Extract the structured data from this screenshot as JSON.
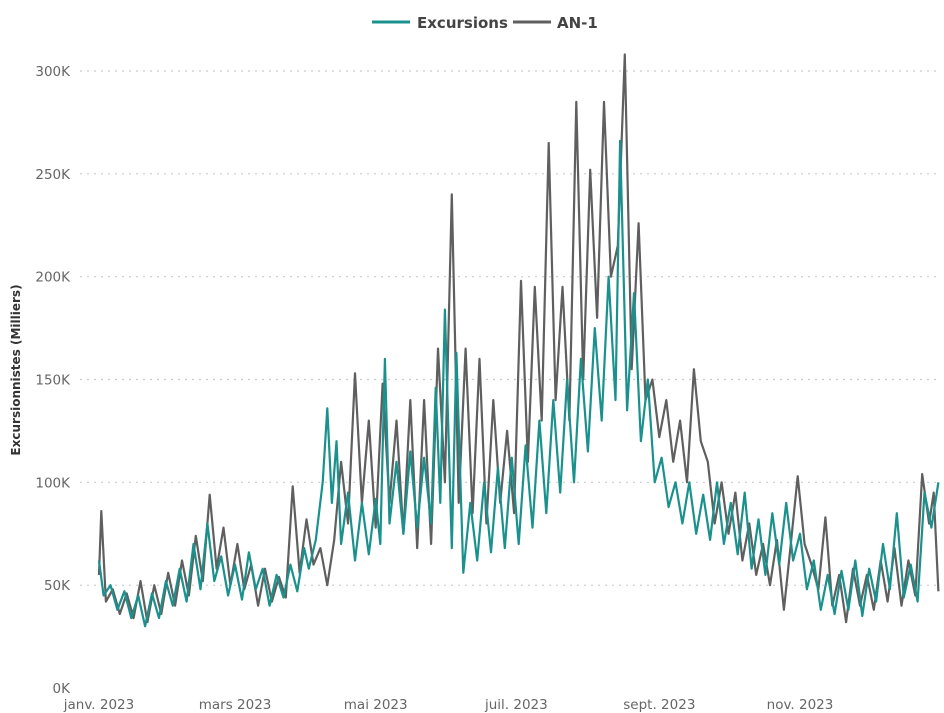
{
  "chart_data": {
    "type": "line",
    "title": "",
    "xlabel": "",
    "ylabel": "Excursionnistes (Milliers)",
    "legend_position": "top-center",
    "grid": true,
    "ylim": [
      0,
      300000
    ],
    "yticks": [
      {
        "value": 0,
        "label": "0K"
      },
      {
        "value": 50000,
        "label": "50K"
      },
      {
        "value": 100000,
        "label": "100K"
      },
      {
        "value": 150000,
        "label": "150K"
      },
      {
        "value": 200000,
        "label": "200K"
      },
      {
        "value": 250000,
        "label": "250K"
      },
      {
        "value": 300000,
        "label": "300K"
      }
    ],
    "xlim": [
      "2023-01-01",
      "2023-12-31"
    ],
    "xticks": [
      {
        "date": "2023-01-01",
        "label": "janv. 2023"
      },
      {
        "date": "2023-03-01",
        "label": "mars 2023"
      },
      {
        "date": "2023-05-01",
        "label": "mai 2023"
      },
      {
        "date": "2023-07-01",
        "label": "juil. 2023"
      },
      {
        "date": "2023-09-01",
        "label": "sept. 2023"
      },
      {
        "date": "2023-11-01",
        "label": "nov. 2023"
      }
    ],
    "series": [
      {
        "name": "Excursions",
        "color": "#1a918d",
        "points": [
          [
            "2023-01-01",
            62000
          ],
          [
            "2023-01-03",
            45000
          ],
          [
            "2023-01-06",
            50000
          ],
          [
            "2023-01-09",
            38000
          ],
          [
            "2023-01-12",
            47000
          ],
          [
            "2023-01-15",
            34000
          ],
          [
            "2023-01-18",
            45000
          ],
          [
            "2023-01-21",
            30000
          ],
          [
            "2023-01-24",
            46000
          ],
          [
            "2023-01-27",
            34000
          ],
          [
            "2023-01-30",
            52000
          ],
          [
            "2023-02-02",
            40000
          ],
          [
            "2023-02-05",
            58000
          ],
          [
            "2023-02-08",
            42000
          ],
          [
            "2023-02-11",
            70000
          ],
          [
            "2023-02-14",
            48000
          ],
          [
            "2023-02-17",
            80000
          ],
          [
            "2023-02-20",
            52000
          ],
          [
            "2023-02-23",
            64000
          ],
          [
            "2023-02-26",
            45000
          ],
          [
            "2023-03-01",
            60000
          ],
          [
            "2023-03-04",
            43000
          ],
          [
            "2023-03-07",
            66000
          ],
          [
            "2023-03-10",
            48000
          ],
          [
            "2023-03-13",
            58000
          ],
          [
            "2023-03-16",
            40000
          ],
          [
            "2023-03-19",
            55000
          ],
          [
            "2023-03-22",
            44000
          ],
          [
            "2023-03-25",
            60000
          ],
          [
            "2023-03-28",
            47000
          ],
          [
            "2023-03-31",
            68000
          ],
          [
            "2023-04-02",
            58000
          ],
          [
            "2023-04-05",
            72000
          ],
          [
            "2023-04-08",
            100000
          ],
          [
            "2023-04-10",
            136000
          ],
          [
            "2023-04-12",
            90000
          ],
          [
            "2023-04-14",
            120000
          ],
          [
            "2023-04-16",
            70000
          ],
          [
            "2023-04-19",
            95000
          ],
          [
            "2023-04-22",
            62000
          ],
          [
            "2023-04-25",
            90000
          ],
          [
            "2023-04-28",
            65000
          ],
          [
            "2023-05-01",
            92000
          ],
          [
            "2023-05-03",
            70000
          ],
          [
            "2023-05-05",
            160000
          ],
          [
            "2023-05-07",
            80000
          ],
          [
            "2023-05-10",
            110000
          ],
          [
            "2023-05-13",
            75000
          ],
          [
            "2023-05-16",
            115000
          ],
          [
            "2023-05-19",
            78000
          ],
          [
            "2023-05-22",
            112000
          ],
          [
            "2023-05-25",
            80000
          ],
          [
            "2023-05-27",
            146000
          ],
          [
            "2023-05-29",
            90000
          ],
          [
            "2023-05-31",
            184000
          ],
          [
            "2023-06-03",
            68000
          ],
          [
            "2023-06-05",
            163000
          ],
          [
            "2023-06-08",
            56000
          ],
          [
            "2023-06-11",
            90000
          ],
          [
            "2023-06-14",
            62000
          ],
          [
            "2023-06-17",
            100000
          ],
          [
            "2023-06-20",
            66000
          ],
          [
            "2023-06-23",
            107000
          ],
          [
            "2023-06-26",
            68000
          ],
          [
            "2023-06-29",
            112000
          ],
          [
            "2023-07-02",
            70000
          ],
          [
            "2023-07-05",
            118000
          ],
          [
            "2023-07-08",
            78000
          ],
          [
            "2023-07-11",
            130000
          ],
          [
            "2023-07-14",
            85000
          ],
          [
            "2023-07-17",
            140000
          ],
          [
            "2023-07-20",
            95000
          ],
          [
            "2023-07-23",
            150000
          ],
          [
            "2023-07-26",
            100000
          ],
          [
            "2023-07-29",
            160000
          ],
          [
            "2023-08-01",
            115000
          ],
          [
            "2023-08-04",
            175000
          ],
          [
            "2023-08-07",
            130000
          ],
          [
            "2023-08-10",
            200000
          ],
          [
            "2023-08-13",
            140000
          ],
          [
            "2023-08-15",
            266000
          ],
          [
            "2023-08-18",
            135000
          ],
          [
            "2023-08-21",
            192000
          ],
          [
            "2023-08-24",
            120000
          ],
          [
            "2023-08-27",
            150000
          ],
          [
            "2023-08-30",
            100000
          ],
          [
            "2023-09-02",
            112000
          ],
          [
            "2023-09-05",
            88000
          ],
          [
            "2023-09-08",
            100000
          ],
          [
            "2023-09-11",
            80000
          ],
          [
            "2023-09-14",
            100000
          ],
          [
            "2023-09-17",
            75000
          ],
          [
            "2023-09-20",
            94000
          ],
          [
            "2023-09-23",
            72000
          ],
          [
            "2023-09-26",
            100000
          ],
          [
            "2023-09-29",
            70000
          ],
          [
            "2023-10-02",
            90000
          ],
          [
            "2023-10-05",
            65000
          ],
          [
            "2023-10-08",
            95000
          ],
          [
            "2023-10-11",
            58000
          ],
          [
            "2023-10-14",
            82000
          ],
          [
            "2023-10-17",
            55000
          ],
          [
            "2023-10-20",
            85000
          ],
          [
            "2023-10-23",
            60000
          ],
          [
            "2023-10-26",
            90000
          ],
          [
            "2023-10-29",
            62000
          ],
          [
            "2023-11-01",
            75000
          ],
          [
            "2023-11-04",
            48000
          ],
          [
            "2023-11-07",
            62000
          ],
          [
            "2023-11-10",
            38000
          ],
          [
            "2023-11-13",
            55000
          ],
          [
            "2023-11-16",
            36000
          ],
          [
            "2023-11-19",
            57000
          ],
          [
            "2023-11-22",
            38000
          ],
          [
            "2023-11-25",
            62000
          ],
          [
            "2023-11-28",
            35000
          ],
          [
            "2023-12-01",
            58000
          ],
          [
            "2023-12-04",
            42000
          ],
          [
            "2023-12-07",
            70000
          ],
          [
            "2023-12-10",
            48000
          ],
          [
            "2023-12-13",
            85000
          ],
          [
            "2023-12-16",
            44000
          ],
          [
            "2023-12-19",
            60000
          ],
          [
            "2023-12-22",
            42000
          ],
          [
            "2023-12-25",
            95000
          ],
          [
            "2023-12-28",
            78000
          ],
          [
            "2023-12-31",
            100000
          ]
        ]
      },
      {
        "name": "AN-1",
        "color": "#5f5f5f",
        "points": [
          [
            "2023-01-01",
            55000
          ],
          [
            "2023-01-02",
            86000
          ],
          [
            "2023-01-04",
            42000
          ],
          [
            "2023-01-07",
            48000
          ],
          [
            "2023-01-10",
            36000
          ],
          [
            "2023-01-13",
            46000
          ],
          [
            "2023-01-16",
            34000
          ],
          [
            "2023-01-19",
            52000
          ],
          [
            "2023-01-22",
            32000
          ],
          [
            "2023-01-25",
            50000
          ],
          [
            "2023-01-28",
            36000
          ],
          [
            "2023-01-31",
            56000
          ],
          [
            "2023-02-03",
            40000
          ],
          [
            "2023-02-06",
            62000
          ],
          [
            "2023-02-09",
            45000
          ],
          [
            "2023-02-12",
            74000
          ],
          [
            "2023-02-15",
            52000
          ],
          [
            "2023-02-18",
            94000
          ],
          [
            "2023-02-21",
            58000
          ],
          [
            "2023-02-24",
            78000
          ],
          [
            "2023-02-27",
            50000
          ],
          [
            "2023-03-02",
            70000
          ],
          [
            "2023-03-05",
            48000
          ],
          [
            "2023-03-08",
            60000
          ],
          [
            "2023-03-11",
            40000
          ],
          [
            "2023-03-14",
            58000
          ],
          [
            "2023-03-17",
            42000
          ],
          [
            "2023-03-20",
            54000
          ],
          [
            "2023-03-23",
            44000
          ],
          [
            "2023-03-26",
            98000
          ],
          [
            "2023-03-29",
            56000
          ],
          [
            "2023-04-01",
            82000
          ],
          [
            "2023-04-04",
            60000
          ],
          [
            "2023-04-07",
            68000
          ],
          [
            "2023-04-10",
            50000
          ],
          [
            "2023-04-13",
            72000
          ],
          [
            "2023-04-16",
            110000
          ],
          [
            "2023-04-19",
            80000
          ],
          [
            "2023-04-22",
            153000
          ],
          [
            "2023-04-25",
            90000
          ],
          [
            "2023-04-28",
            130000
          ],
          [
            "2023-05-01",
            78000
          ],
          [
            "2023-05-04",
            148000
          ],
          [
            "2023-05-07",
            90000
          ],
          [
            "2023-05-10",
            130000
          ],
          [
            "2023-05-13",
            75000
          ],
          [
            "2023-05-16",
            140000
          ],
          [
            "2023-05-19",
            68000
          ],
          [
            "2023-05-22",
            140000
          ],
          [
            "2023-05-25",
            70000
          ],
          [
            "2023-05-28",
            165000
          ],
          [
            "2023-05-31",
            100000
          ],
          [
            "2023-06-03",
            240000
          ],
          [
            "2023-06-06",
            90000
          ],
          [
            "2023-06-09",
            165000
          ],
          [
            "2023-06-12",
            85000
          ],
          [
            "2023-06-15",
            160000
          ],
          [
            "2023-06-18",
            80000
          ],
          [
            "2023-06-21",
            140000
          ],
          [
            "2023-06-24",
            90000
          ],
          [
            "2023-06-27",
            125000
          ],
          [
            "2023-06-30",
            85000
          ],
          [
            "2023-07-03",
            198000
          ],
          [
            "2023-07-06",
            110000
          ],
          [
            "2023-07-09",
            195000
          ],
          [
            "2023-07-12",
            130000
          ],
          [
            "2023-07-15",
            265000
          ],
          [
            "2023-07-18",
            140000
          ],
          [
            "2023-07-21",
            195000
          ],
          [
            "2023-07-24",
            130000
          ],
          [
            "2023-07-27",
            285000
          ],
          [
            "2023-07-30",
            150000
          ],
          [
            "2023-08-02",
            252000
          ],
          [
            "2023-08-05",
            180000
          ],
          [
            "2023-08-08",
            285000
          ],
          [
            "2023-08-11",
            200000
          ],
          [
            "2023-08-14",
            215000
          ],
          [
            "2023-08-17",
            308000
          ],
          [
            "2023-08-20",
            155000
          ],
          [
            "2023-08-23",
            226000
          ],
          [
            "2023-08-26",
            140000
          ],
          [
            "2023-08-29",
            150000
          ],
          [
            "2023-09-01",
            122000
          ],
          [
            "2023-09-04",
            140000
          ],
          [
            "2023-09-07",
            110000
          ],
          [
            "2023-09-10",
            130000
          ],
          [
            "2023-09-13",
            100000
          ],
          [
            "2023-09-16",
            155000
          ],
          [
            "2023-09-19",
            120000
          ],
          [
            "2023-09-22",
            110000
          ],
          [
            "2023-09-25",
            80000
          ],
          [
            "2023-09-28",
            100000
          ],
          [
            "2023-10-01",
            75000
          ],
          [
            "2023-10-04",
            95000
          ],
          [
            "2023-10-07",
            62000
          ],
          [
            "2023-10-10",
            80000
          ],
          [
            "2023-10-13",
            55000
          ],
          [
            "2023-10-16",
            70000
          ],
          [
            "2023-10-19",
            50000
          ],
          [
            "2023-10-22",
            72000
          ],
          [
            "2023-10-25",
            38000
          ],
          [
            "2023-10-28",
            70000
          ],
          [
            "2023-10-31",
            103000
          ],
          [
            "2023-11-03",
            70000
          ],
          [
            "2023-11-06",
            60000
          ],
          [
            "2023-11-09",
            48000
          ],
          [
            "2023-11-12",
            83000
          ],
          [
            "2023-11-15",
            40000
          ],
          [
            "2023-11-18",
            55000
          ],
          [
            "2023-11-21",
            32000
          ],
          [
            "2023-11-24",
            58000
          ],
          [
            "2023-11-27",
            40000
          ],
          [
            "2023-11-30",
            55000
          ],
          [
            "2023-12-03",
            38000
          ],
          [
            "2023-12-06",
            62000
          ],
          [
            "2023-12-09",
            42000
          ],
          [
            "2023-12-12",
            68000
          ],
          [
            "2023-12-15",
            40000
          ],
          [
            "2023-12-18",
            62000
          ],
          [
            "2023-12-21",
            45000
          ],
          [
            "2023-12-24",
            104000
          ],
          [
            "2023-12-27",
            80000
          ],
          [
            "2023-12-29",
            95000
          ],
          [
            "2023-12-31",
            47000
          ]
        ]
      }
    ]
  }
}
